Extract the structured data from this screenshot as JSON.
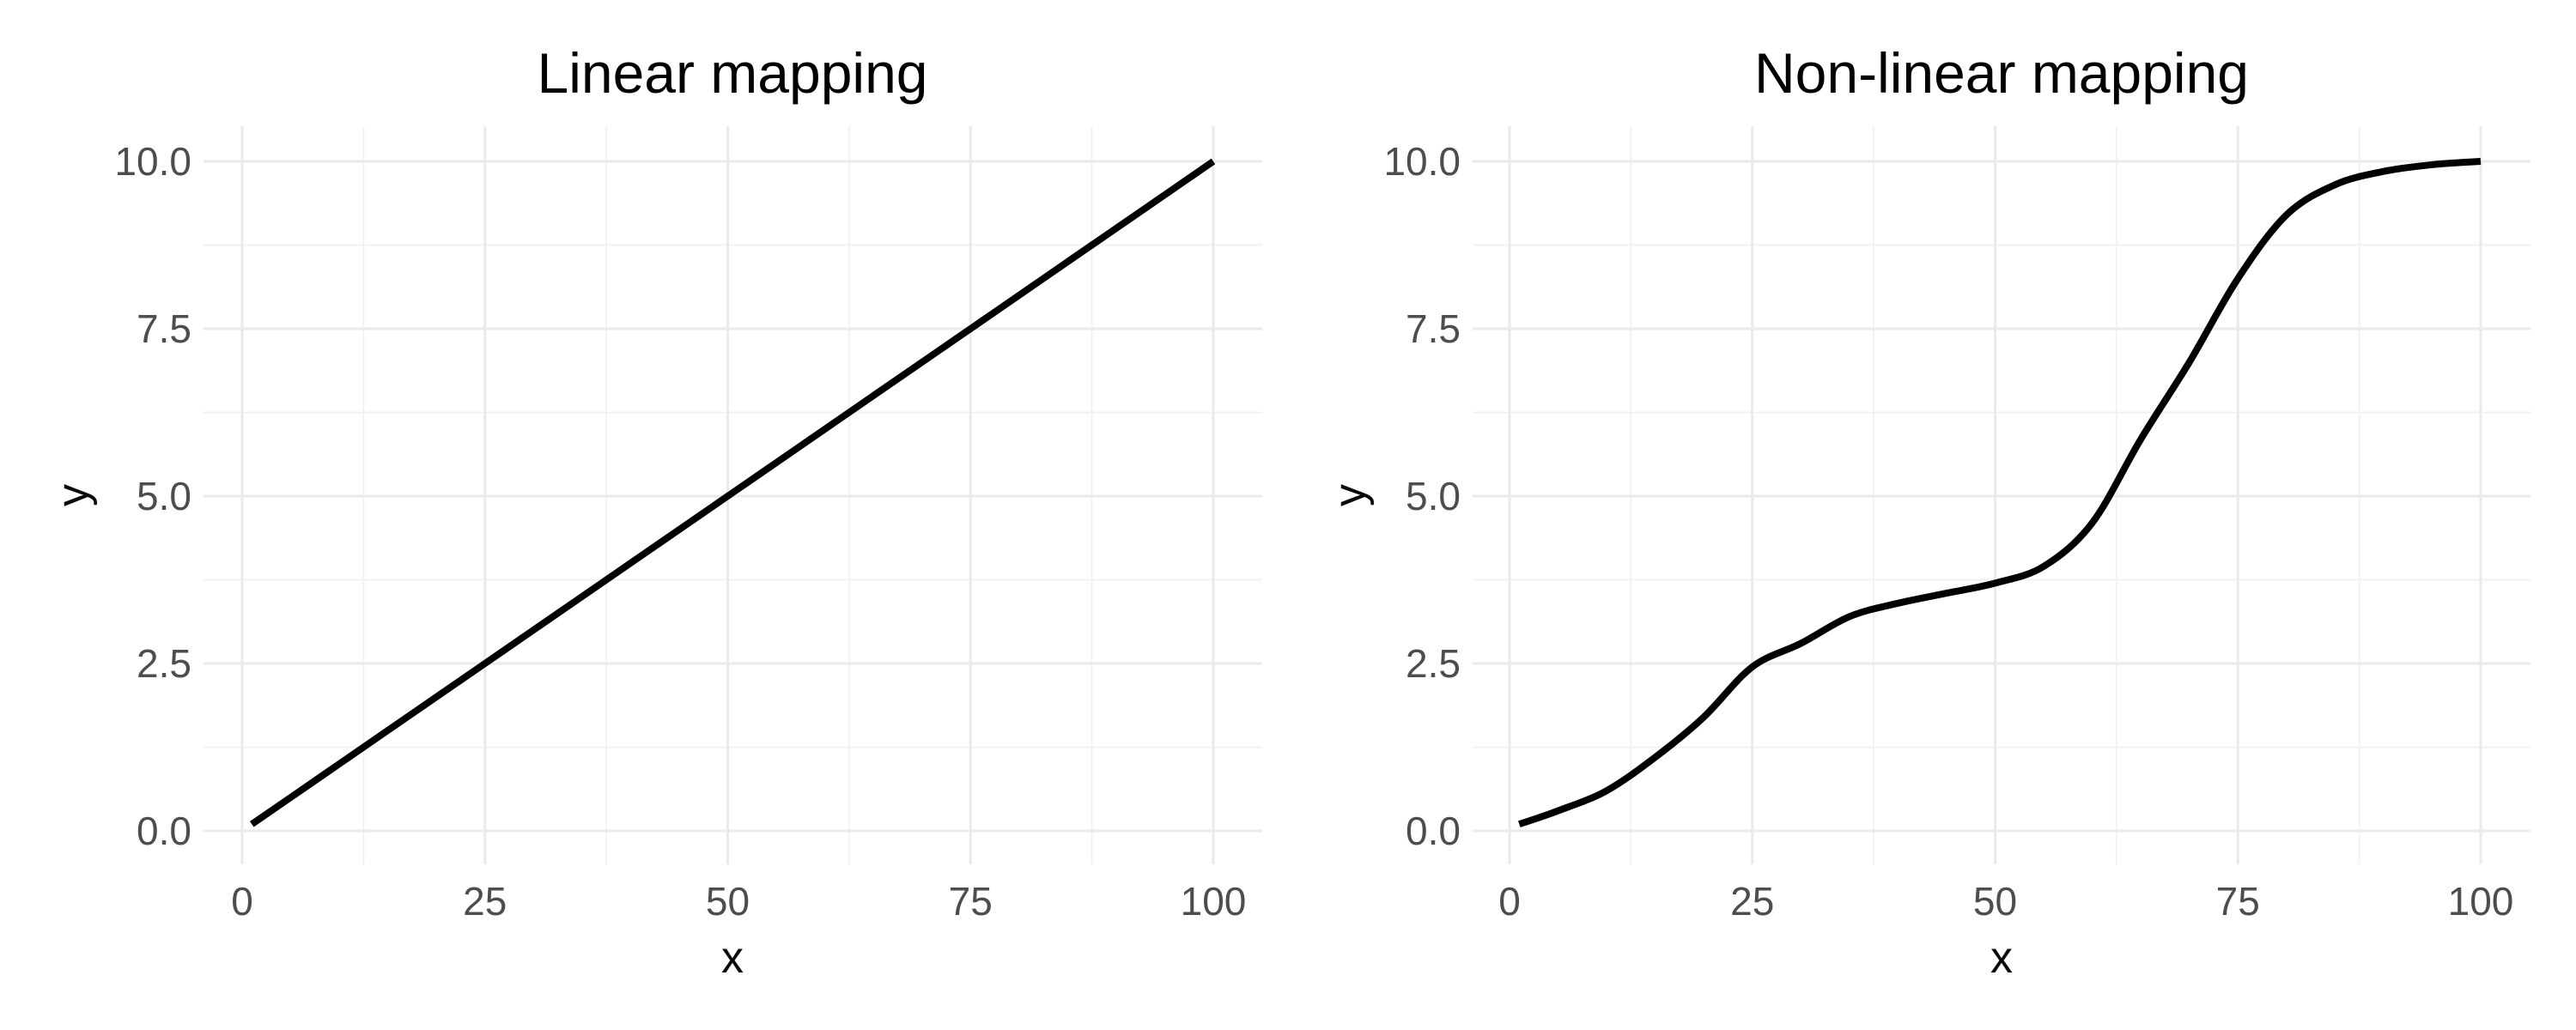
{
  "figure": {
    "background_color": "#FFFFFF",
    "title_color": "#000000",
    "axis_title_color": "#0A0A0A",
    "tick_label_color": "#4D4D4D",
    "grid_major_color": "#EAEAEA",
    "grid_minor_color": "#F2F2F2",
    "line_color": "#000000"
  },
  "chart_data": [
    {
      "type": "line",
      "title": "Linear mapping",
      "xlabel": "x",
      "ylabel": "y",
      "xlim": [
        0,
        100
      ],
      "ylim": [
        0,
        10
      ],
      "x_ticks": [
        0,
        25,
        50,
        75,
        100
      ],
      "y_ticks": [
        0,
        2.5,
        5,
        7.5,
        10
      ],
      "x_tick_labels": [
        "0",
        "25",
        "50",
        "75",
        "100"
      ],
      "y_tick_labels": [
        "0.0",
        "2.5",
        "5.0",
        "7.5",
        "10.0"
      ],
      "grid": "major-and-minor",
      "legend": "none",
      "series": [
        {
          "name": "linear",
          "x": [
            1,
            5,
            10,
            15,
            20,
            25,
            30,
            35,
            40,
            45,
            50,
            55,
            60,
            65,
            70,
            75,
            80,
            85,
            90,
            95,
            100
          ],
          "y": [
            0.1,
            0.5,
            1.0,
            1.5,
            2.0,
            2.5,
            3.0,
            3.5,
            4.0,
            4.5,
            5.0,
            5.5,
            6.0,
            6.5,
            7.0,
            7.5,
            8.0,
            8.5,
            9.0,
            9.5,
            10.0
          ]
        }
      ]
    },
    {
      "type": "line",
      "title": "Non-linear mapping",
      "xlabel": "x",
      "ylabel": "y",
      "xlim": [
        0,
        100
      ],
      "ylim": [
        0,
        10
      ],
      "x_ticks": [
        0,
        25,
        50,
        75,
        100
      ],
      "y_ticks": [
        0,
        2.5,
        5,
        7.5,
        10
      ],
      "x_tick_labels": [
        "0",
        "25",
        "50",
        "75",
        "100"
      ],
      "y_tick_labels": [
        "0.0",
        "2.5",
        "5.0",
        "7.5",
        "10.0"
      ],
      "grid": "major-and-minor",
      "legend": "none",
      "series": [
        {
          "name": "non-linear",
          "x": [
            1,
            5,
            10,
            15,
            20,
            25,
            30,
            35,
            40,
            45,
            50,
            55,
            60,
            65,
            70,
            75,
            80,
            85,
            90,
            95,
            100
          ],
          "y": [
            0.1,
            0.3,
            0.6,
            1.1,
            1.7,
            2.45,
            2.8,
            3.2,
            3.4,
            3.55,
            3.7,
            3.95,
            4.6,
            5.85,
            7.0,
            8.25,
            9.2,
            9.65,
            9.85,
            9.95,
            10.0
          ]
        }
      ]
    }
  ]
}
